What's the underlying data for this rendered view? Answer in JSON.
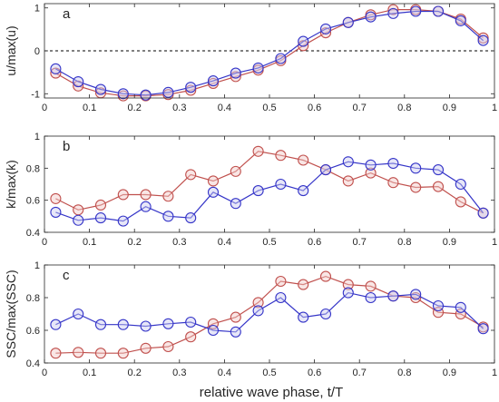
{
  "colors": {
    "series_red": "#c0504d",
    "series_blue": "#3535c8",
    "axis": "#262626",
    "fill_red": "#f2c7c5",
    "fill_blue": "#c9c9f0"
  },
  "chart_data": {
    "xlabel": "relative wave phase, t/T",
    "x": [
      0.025,
      0.075,
      0.125,
      0.175,
      0.225,
      0.275,
      0.325,
      0.375,
      0.425,
      0.475,
      0.525,
      0.575,
      0.625,
      0.675,
      0.725,
      0.775,
      0.825,
      0.875,
      0.925,
      0.975
    ],
    "xlim": [
      0,
      1
    ],
    "xticks": [
      "0",
      "0.1",
      "0.2",
      "0.3",
      "0.4",
      "0.5",
      "0.6",
      "0.7",
      "0.8",
      "0.9",
      "1"
    ],
    "panels": [
      {
        "type": "line",
        "label": "a",
        "ylabel": "u/max(u)",
        "ylim": [
          -1.1,
          1.1
        ],
        "yticks": [
          -1,
          0,
          1
        ],
        "zero_line": true,
        "series": [
          {
            "color": "red",
            "values": [
              -0.52,
              -0.82,
              -0.98,
              -1.05,
              -1.05,
              -1.02,
              -0.92,
              -0.76,
              -0.6,
              -0.45,
              -0.23,
              0.12,
              0.42,
              0.66,
              0.84,
              0.96,
              0.96,
              0.92,
              0.74,
              0.3
            ]
          },
          {
            "color": "blue",
            "values": [
              -0.42,
              -0.72,
              -0.9,
              -1.0,
              -1.03,
              -0.97,
              -0.85,
              -0.7,
              -0.52,
              -0.4,
              -0.18,
              0.22,
              0.51,
              0.66,
              0.79,
              0.87,
              0.92,
              0.92,
              0.7,
              0.24
            ]
          }
        ]
      },
      {
        "type": "line",
        "label": "b",
        "ylabel": "k/max(k)",
        "ylim": [
          0.4,
          1.0
        ],
        "yticks": [
          0.4,
          0.6,
          0.8,
          1
        ],
        "series": [
          {
            "color": "red",
            "values": [
              0.61,
              0.54,
              0.57,
              0.635,
              0.635,
              0.625,
              0.76,
              0.72,
              0.78,
              0.905,
              0.88,
              0.85,
              0.79,
              0.72,
              0.77,
              0.71,
              0.68,
              0.685,
              0.59,
              0.52
            ]
          },
          {
            "color": "blue",
            "values": [
              0.525,
              0.475,
              0.49,
              0.47,
              0.56,
              0.5,
              0.49,
              0.65,
              0.58,
              0.66,
              0.7,
              0.66,
              0.79,
              0.84,
              0.82,
              0.83,
              0.8,
              0.79,
              0.7,
              0.52
            ]
          }
        ]
      },
      {
        "type": "line",
        "label": "c",
        "ylabel": "SSC/max(SSC)",
        "ylim": [
          0.4,
          1.0
        ],
        "yticks": [
          0.4,
          0.6,
          0.8,
          1
        ],
        "series": [
          {
            "color": "red",
            "values": [
              0.46,
              0.465,
              0.46,
              0.46,
              0.49,
              0.5,
              0.56,
              0.64,
              0.68,
              0.77,
              0.9,
              0.88,
              0.93,
              0.88,
              0.87,
              0.81,
              0.8,
              0.71,
              0.7,
              0.62
            ]
          },
          {
            "color": "blue",
            "values": [
              0.635,
              0.7,
              0.635,
              0.635,
              0.625,
              0.64,
              0.65,
              0.6,
              0.59,
              0.72,
              0.8,
              0.68,
              0.7,
              0.83,
              0.8,
              0.81,
              0.82,
              0.75,
              0.74,
              0.61
            ]
          }
        ]
      }
    ]
  }
}
